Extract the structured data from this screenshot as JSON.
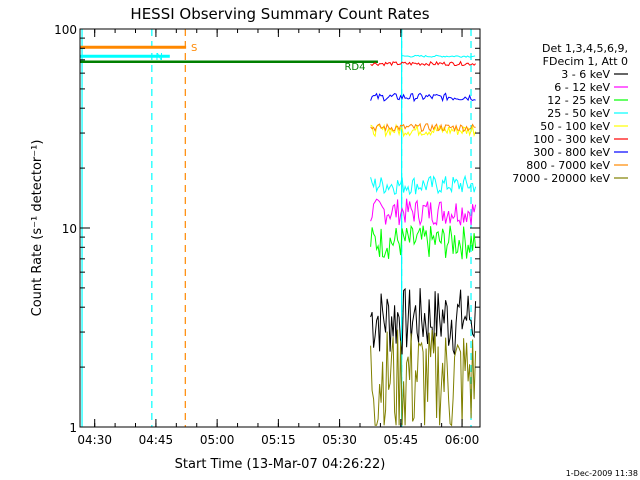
{
  "chart_data": {
    "type": "line",
    "title": "HESSI Observing Summary Count Rates",
    "ylabel": "Count Rate (s⁻¹ detector⁻¹)",
    "xlabel": "Start Time (13-Mar-07 04:26:22)",
    "xlim_min": [
      0,
      98
    ],
    "ylim": [
      1,
      100
    ],
    "yscale": "log",
    "x_ticks": [
      {
        "label": "04:30",
        "min": 3.6
      },
      {
        "label": "04:45",
        "min": 18.6
      },
      {
        "label": "05:00",
        "min": 33.6
      },
      {
        "label": "05:15",
        "min": 48.6
      },
      {
        "label": "05:30",
        "min": 63.6
      },
      {
        "label": "05:45",
        "min": 78.6
      },
      {
        "label": "06:00",
        "min": 93.6
      }
    ],
    "y_ticks": [
      {
        "label": "1",
        "value": 1
      },
      {
        "label": "10",
        "value": 10
      },
      {
        "label": "100",
        "value": 100
      }
    ],
    "legend_header": [
      "Det 1,3,4,5,6,9,",
      "FDecim 1, Att 0"
    ],
    "series": [
      {
        "name": "3 - 6 keV",
        "color": "#000000",
        "segments": [
          {
            "x0": 71.2,
            "x1": 97.0,
            "level": 3.6,
            "noise": 0.18
          }
        ]
      },
      {
        "name": "6 - 12 keV",
        "color": "#ff00ff",
        "segments": [
          {
            "x0": 71.2,
            "x1": 97.0,
            "level": 12.2,
            "noise": 0.07
          }
        ]
      },
      {
        "name": "12 - 25 keV",
        "color": "#00ff00",
        "segments": [
          {
            "x0": 71.2,
            "x1": 97.0,
            "level": 8.6,
            "noise": 0.09
          }
        ]
      },
      {
        "name": "25 - 50 keV",
        "color": "#00ffff",
        "segments": [
          {
            "x0": 0,
            "x1": 22,
            "level": 73
          },
          {
            "x0": 71.2,
            "x1": 97.0,
            "level": 16.5,
            "noise": 0.05
          },
          {
            "x0": 78.8,
            "x1": 97.0,
            "level": 73,
            "noise": 0.005
          }
        ]
      },
      {
        "name": "50 - 100 keV",
        "color": "#ffff00",
        "segments": [
          {
            "x0": 71.2,
            "x1": 97.0,
            "level": 31,
            "noise": 0.03
          }
        ]
      },
      {
        "name": "100 - 300 keV",
        "color": "#ff0000",
        "segments": [
          {
            "x0": 71.2,
            "x1": 97.0,
            "level": 67,
            "noise": 0.01
          }
        ]
      },
      {
        "name": "300 - 800 keV",
        "color": "#0000ff",
        "segments": [
          {
            "x0": 71.2,
            "x1": 97.0,
            "level": 45.5,
            "noise": 0.02
          }
        ]
      },
      {
        "name": "800 - 7000 keV",
        "color": "#ff8800",
        "segments": [
          {
            "x0": 0,
            "x1": 26,
            "level": 81
          },
          {
            "x0": 71.2,
            "x1": 97.0,
            "level": 32,
            "noise": 0.02
          }
        ]
      },
      {
        "name": "7000 - 20000 keV",
        "color": "#808000",
        "segments": [
          {
            "x0": 71.2,
            "x1": 97.0,
            "level": 1.9,
            "noise": 0.3
          }
        ]
      }
    ],
    "baseline": {
      "name": "RD4",
      "color": "#008000",
      "x0": 0,
      "x1": 73.0,
      "level": 68.5
    },
    "event_lines": [
      {
        "x": 17.6,
        "color": "#00ffff",
        "label": ""
      },
      {
        "x": 25.8,
        "color": "#ff8800",
        "label": ""
      },
      {
        "x": 78.8,
        "color": "#00ffff",
        "label": ""
      },
      {
        "x": 95.8,
        "color": "#00ffff",
        "label": ""
      }
    ],
    "solid_lines": [
      {
        "x": 0.5,
        "color": "#00ffff"
      },
      {
        "x": 78.8,
        "color": "#00ffff"
      }
    ],
    "flag_labels": [
      {
        "text": "S",
        "color": "#ff8800",
        "x": 27.2,
        "y": 81
      },
      {
        "text": "N",
        "color": "#00ffff",
        "x": 18.5,
        "y": 73
      },
      {
        "text": "RD4",
        "color": "#008000",
        "x": 64.8,
        "y": 65
      }
    ]
  },
  "footer_date": "1-Dec-2009 11:38"
}
